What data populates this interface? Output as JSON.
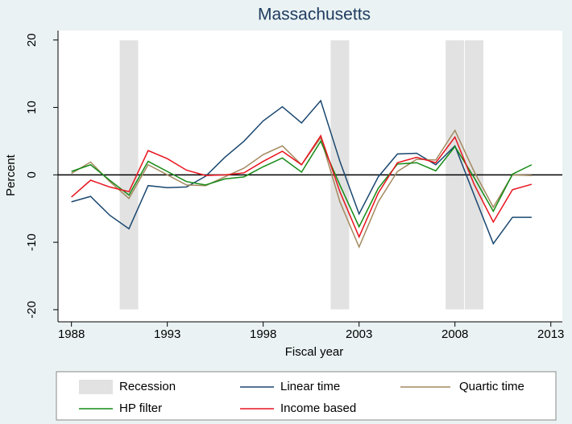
{
  "chart_data": {
    "type": "line",
    "title": "Massachusetts",
    "xlabel": "Fiscal year",
    "ylabel": "Percent",
    "x": [
      1988,
      1989,
      1990,
      1991,
      1992,
      1993,
      1994,
      1995,
      1996,
      1997,
      1998,
      1999,
      2000,
      2001,
      2002,
      2003,
      2004,
      2005,
      2006,
      2007,
      2008,
      2009,
      2010,
      2011,
      2012
    ],
    "series": [
      {
        "name": "Linear time",
        "color": "#1a476f",
        "values": [
          -4,
          -3.2,
          -6,
          -8,
          -1.6,
          -1.9,
          -1.8,
          -0.2,
          2.6,
          5,
          8,
          10.1,
          7.7,
          11,
          2,
          -5.8,
          -0.3,
          3.1,
          3.2,
          1.5,
          4.3,
          -3,
          -10.2,
          -6.3,
          -6.3
        ]
      },
      {
        "name": "Quartic time",
        "color": "#a3895f",
        "values": [
          0.2,
          1.9,
          -1,
          -3.5,
          1.5,
          0,
          -1.5,
          -1.6,
          -0.3,
          1,
          3,
          4.3,
          1.5,
          5.5,
          -4,
          -10.7,
          -4,
          0.5,
          2.3,
          2.2,
          6.6,
          0.5,
          -4.8,
          0,
          -0.1
        ]
      },
      {
        "name": "HP filter",
        "color": "#148a14",
        "values": [
          0.5,
          1.5,
          -0.8,
          -3,
          2,
          0.5,
          -1,
          -1.5,
          -0.6,
          -0.3,
          1.2,
          2.5,
          0.4,
          5,
          -1.5,
          -7.7,
          -2,
          1.6,
          1.8,
          0.6,
          4.2,
          -0.4,
          -5.4,
          0.1,
          1.5
        ]
      },
      {
        "name": "Income based",
        "color": "#e8141e",
        "values": [
          -3.3,
          -0.8,
          -1.8,
          -2.5,
          3.6,
          2.4,
          0.7,
          -0.1,
          0,
          0.3,
          2,
          3.5,
          1.5,
          5.8,
          -2.5,
          -9.2,
          -2.7,
          1.8,
          2.6,
          1.8,
          5.6,
          -1.4,
          -7,
          -2.2,
          -1.4
        ]
      }
    ],
    "recession": {
      "name": "Recession",
      "color": "#e2e2e2",
      "spans": [
        [
          1990.5,
          1991.5
        ],
        [
          2001.5,
          2002.5
        ],
        [
          2007.5,
          2008.5
        ],
        [
          2008.5,
          2009.5
        ]
      ],
      "y": [
        -20,
        20
      ]
    },
    "hline": 0,
    "xlim": [
      1987.3,
      2013.6
    ],
    "ylim": [
      -21.8,
      21.4
    ],
    "xticks": [
      1988,
      1993,
      1998,
      2003,
      2008,
      2013
    ],
    "yticks": [
      -20,
      -10,
      0,
      10,
      20
    ]
  }
}
